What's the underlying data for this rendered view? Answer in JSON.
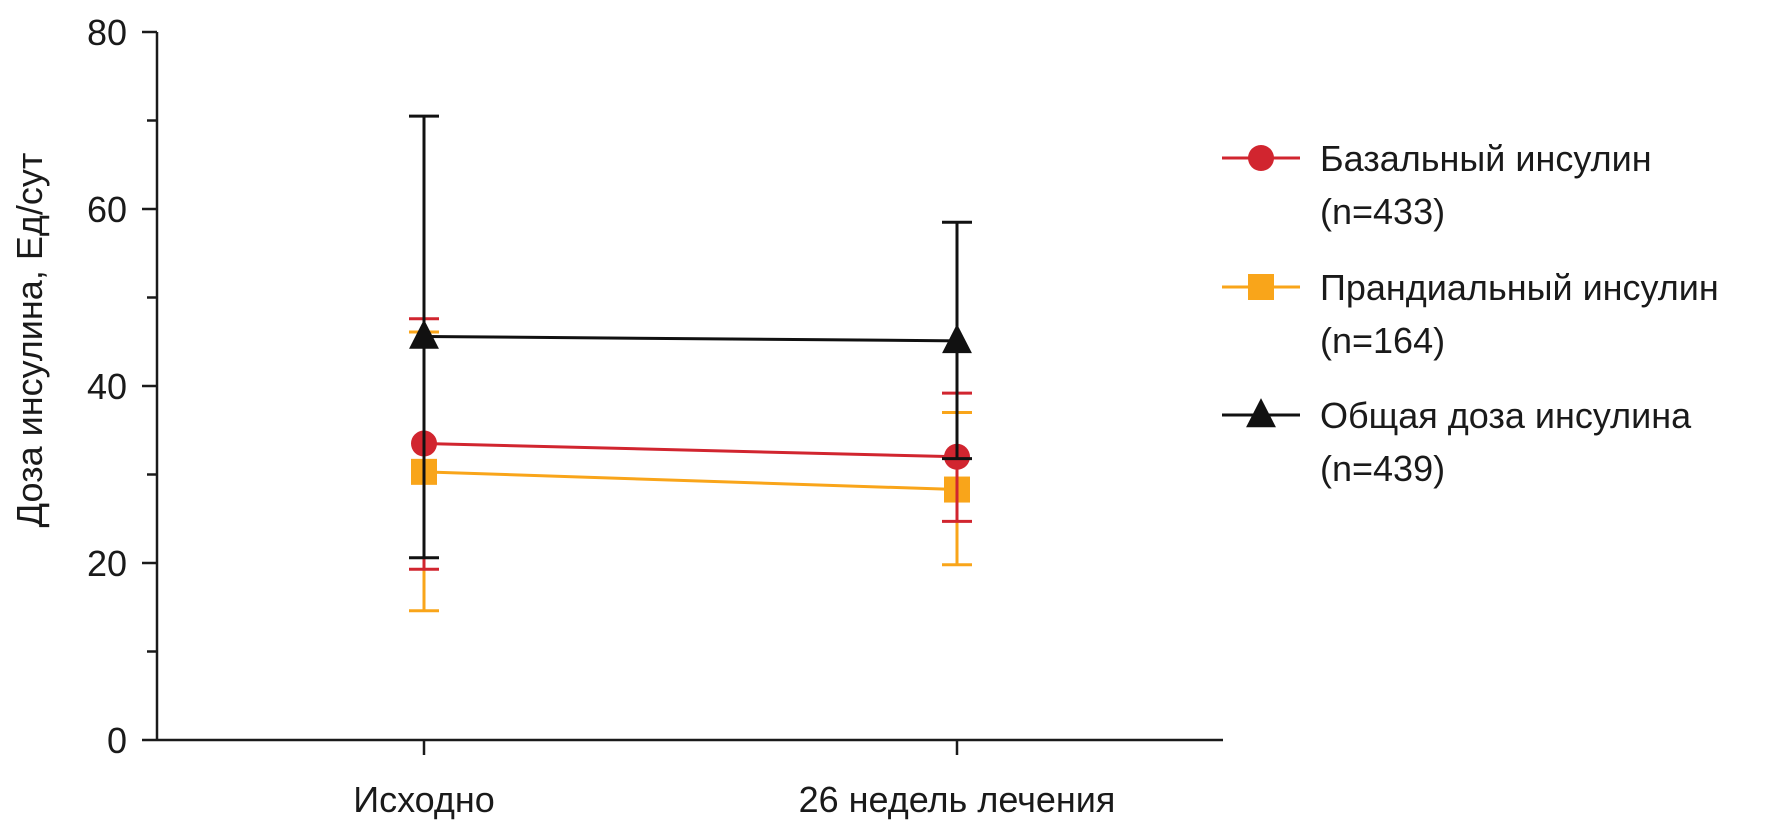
{
  "chart_data": {
    "type": "line",
    "title": "",
    "xlabel": "",
    "ylabel": "Доза инсулина, Ед/сут",
    "categories": [
      "Исходно",
      "26 недель лечения"
    ],
    "ylim": [
      0,
      80
    ],
    "y_ticks": [
      0,
      20,
      40,
      60,
      80
    ],
    "y_tick_labels": [
      "0",
      "20",
      "40",
      "60",
      "80"
    ],
    "y_minor_ticks": [
      10,
      30,
      50,
      70
    ],
    "grid": false,
    "legend_position": "right",
    "series": [
      {
        "name": "Базальный инсулин",
        "n_label": "(n=433)",
        "marker": "circle",
        "color": "#d1252f",
        "values": [
          33.5,
          32.0
        ],
        "error_low": [
          19.3,
          24.7
        ],
        "error_high": [
          47.6,
          39.2
        ]
      },
      {
        "name": "Прандиальный инсулин",
        "n_label": "(n=164)",
        "marker": "square",
        "color": "#f9a51a",
        "values": [
          30.3,
          28.3
        ],
        "error_low": [
          14.6,
          19.8
        ],
        "error_high": [
          46.1,
          37.0
        ]
      },
      {
        "name": "Общая доза инсулина",
        "n_label": "(n=439)",
        "marker": "triangle",
        "color": "#111111",
        "values": [
          45.6,
          45.1
        ],
        "error_low": [
          20.6,
          31.8
        ],
        "error_high": [
          70.5,
          58.5
        ]
      }
    ]
  }
}
